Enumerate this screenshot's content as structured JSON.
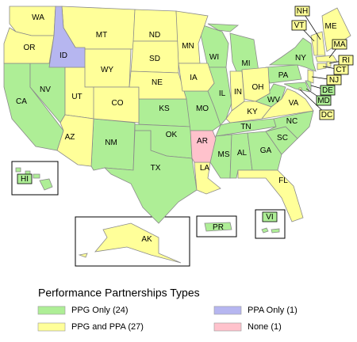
{
  "legend": {
    "title": "Performance Partnerships Types",
    "items": [
      {
        "label": "PPG Only (24)",
        "color": "#aeee96",
        "states": [
          "CA",
          "NV",
          "NM",
          "KS",
          "OK",
          "TX",
          "MO",
          "WI",
          "MI",
          "IL",
          "TN",
          "MS",
          "AL",
          "GA",
          "SC",
          "NC",
          "WV",
          "PA",
          "NY",
          "DE",
          "MD",
          "HI",
          "PR",
          "VI"
        ]
      },
      {
        "label": "PPG and PPA (27)",
        "color": "#ffff99",
        "states": [
          "WA",
          "OR",
          "MT",
          "WY",
          "UT",
          "CO",
          "AZ",
          "ND",
          "SD",
          "NE",
          "MN",
          "IA",
          "IN",
          "OH",
          "KY",
          "VA",
          "FL",
          "LA",
          "AK",
          "ME",
          "NH",
          "VT",
          "MA",
          "RI",
          "CT",
          "NJ",
          "DC"
        ]
      },
      {
        "label": "PPA Only (1)",
        "color": "#b6b6f0",
        "states": [
          "ID"
        ]
      },
      {
        "label": "None (1)",
        "color": "#ffc2cc",
        "states": [
          "AR"
        ]
      }
    ]
  }
}
